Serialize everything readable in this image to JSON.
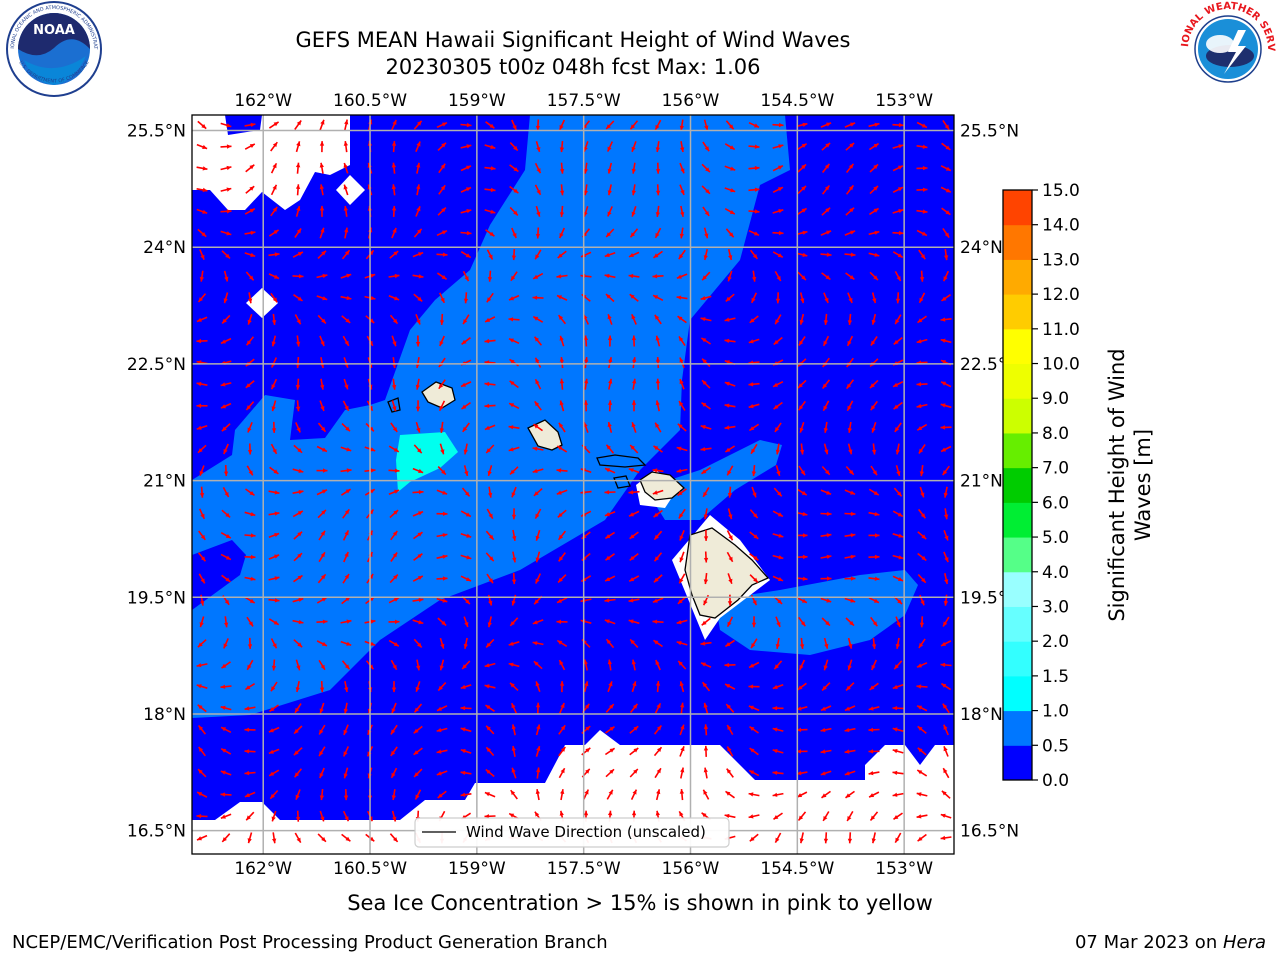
{
  "header": {
    "title_line1": "GEFS MEAN Hawaii Significant Height of Wind Waves",
    "title_line2": "20230305 t00z 048h fcst   Max: 1.06"
  },
  "logos": {
    "noaa_text": "NOAA",
    "noaa_ring_text": "NATIONAL OCEANIC AND ATMOSPHERIC ADMINISTRATION",
    "noaa_ring_bottom": "U.S. DEPARTMENT OF COMMERCE",
    "nws_ring_text": "NATIONAL WEATHER SERVICE"
  },
  "map": {
    "lon_labels": [
      "162°W",
      "160.5°W",
      "159°W",
      "157.5°W",
      "156°W",
      "154.5°W",
      "153°W"
    ],
    "lat_labels": [
      "25.5°N",
      "24°N",
      "22.5°N",
      "21°N",
      "19.5°N",
      "18°N",
      "16.5°N"
    ],
    "lon_values": [
      -162,
      -160.5,
      -159,
      -157.5,
      -156,
      -154.5,
      -153
    ],
    "lat_values": [
      25.5,
      24,
      22.5,
      21,
      19.5,
      18,
      16.5
    ],
    "lon_range": [
      -163,
      -152.3
    ],
    "lat_range": [
      16.2,
      25.7
    ],
    "legend_label": "Wind Wave Direction (unscaled)",
    "colors": {
      "wave_0_0_5": "#0000fe",
      "wave_0_5_1_0": "#0077ff",
      "wave_1_0_1_5": "#00ffef",
      "land": "#efebd8",
      "no_data": "#ffffff",
      "arrow": "#ff0000",
      "grid": "#b0b0b0"
    }
  },
  "colorbar": {
    "ticks": [
      "0.0",
      "0.5",
      "1.0",
      "1.5",
      "2.0",
      "3.0",
      "4.0",
      "5.0",
      "6.0",
      "7.0",
      "8.0",
      "9.0",
      "10.0",
      "11.0",
      "12.0",
      "13.0",
      "14.0",
      "15.0"
    ],
    "colors": [
      "#0000ff",
      "#0077ff",
      "#00ffff",
      "#33ffff",
      "#66ffff",
      "#99ffff",
      "#55ff88",
      "#00ee33",
      "#00cc00",
      "#66ee00",
      "#ccff00",
      "#eeff00",
      "#ffff00",
      "#ffcc00",
      "#ffaa00",
      "#ff7700",
      "#ff4400",
      "#ff0000"
    ],
    "label": "Significant Height of Wind Waves [m]"
  },
  "subcaption": "Sea Ice Concentration > 15% is shown in pink to yellow",
  "footer": {
    "left": "NCEP/EMC/Verification Post Processing Product Generation Branch",
    "right_date": "07 Mar 2023 on ",
    "right_host": "Hera"
  }
}
